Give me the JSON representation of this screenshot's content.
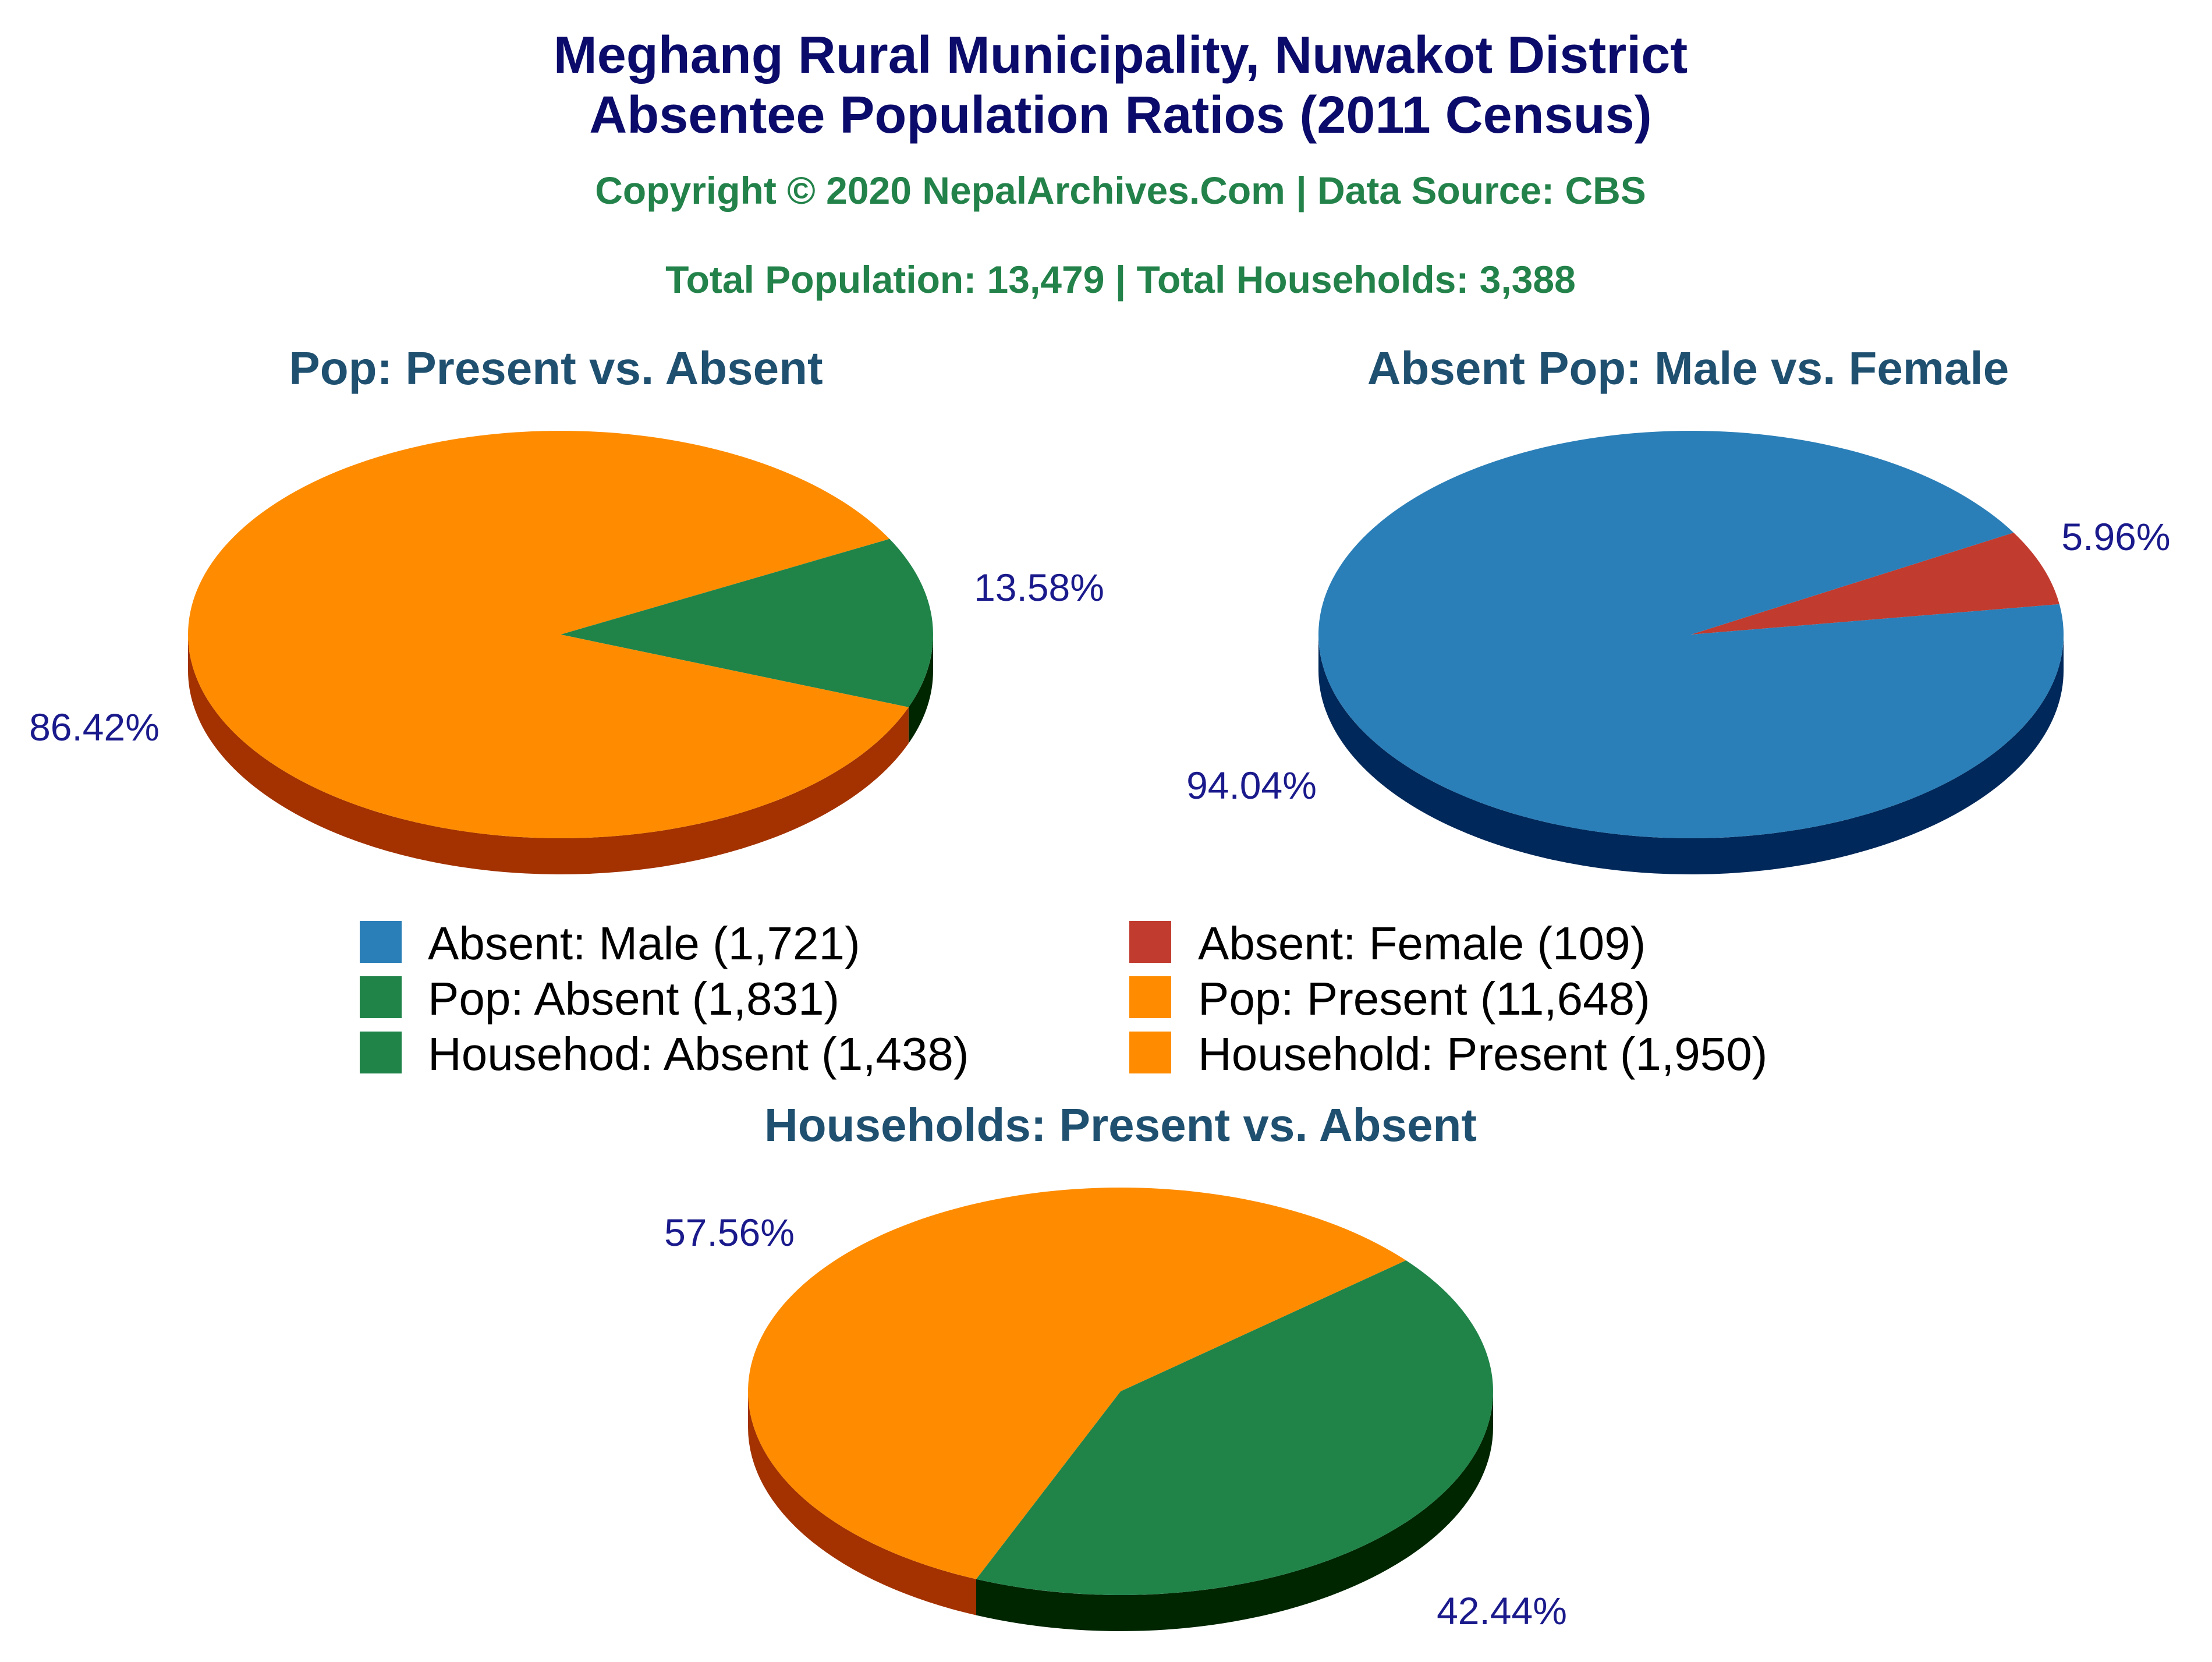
{
  "header": {
    "title_line1": "Meghang Rural Municipality, Nuwakot District",
    "title_line2": "Absentee Population Ratios (2011 Census)",
    "copyright": "Copyright © 2020 NepalArchives.Com | Data Source: CBS",
    "totals": "Total Population: 13,479 | Total Households: 3,388"
  },
  "colors": {
    "title": "#0b0b6b",
    "green_text": "#23824a",
    "subtitle": "#1f5070",
    "pct_label": "#1a1a8c",
    "orange": "#ff8c00",
    "orange_side": "#a33200",
    "green": "#208449",
    "green_side": "#002600",
    "blue": "#2b7fb8",
    "blue_side": "#00285a",
    "red": "#c13b2f",
    "red_side": "#6e1610"
  },
  "chart_data": [
    {
      "type": "pie",
      "title": "Pop: Present vs. Absent",
      "slices": [
        {
          "name": "Pop: Absent",
          "value": 1831,
          "percent_label": "13.58%",
          "color": "#208449",
          "side_color": "#002600"
        },
        {
          "name": "Pop: Present",
          "value": 11648,
          "percent_label": "86.42%",
          "color": "#ff8c00",
          "side_color": "#a33200"
        }
      ]
    },
    {
      "type": "pie",
      "title": "Absent Pop: Male vs. Female",
      "slices": [
        {
          "name": "Absent: Female",
          "value": 109,
          "percent_label": "5.96%",
          "color": "#c13b2f",
          "side_color": "#6e1610"
        },
        {
          "name": "Absent: Male",
          "value": 1721,
          "percent_label": "94.04%",
          "color": "#2b7fb8",
          "side_color": "#00285a"
        }
      ]
    },
    {
      "type": "pie",
      "title": "Households: Present vs. Absent",
      "slices": [
        {
          "name": "Househod: Absent",
          "value": 1438,
          "percent_label": "42.44%",
          "color": "#208449",
          "side_color": "#002600"
        },
        {
          "name": "Household: Present",
          "value": 1950,
          "percent_label": "57.56%",
          "color": "#ff8c00",
          "side_color": "#a33200"
        }
      ]
    }
  ],
  "legend": [
    {
      "label": "Absent: Male (1,721)",
      "color": "#2b7fb8"
    },
    {
      "label": "Absent: Female (109)",
      "color": "#c13b2f"
    },
    {
      "label": "Pop: Absent (1,831)",
      "color": "#208449"
    },
    {
      "label": "Pop: Present (11,648)",
      "color": "#ff8c00"
    },
    {
      "label": "Househod: Absent (1,438)",
      "color": "#208449"
    },
    {
      "label": "Household: Present (1,950)",
      "color": "#ff8c00"
    }
  ]
}
